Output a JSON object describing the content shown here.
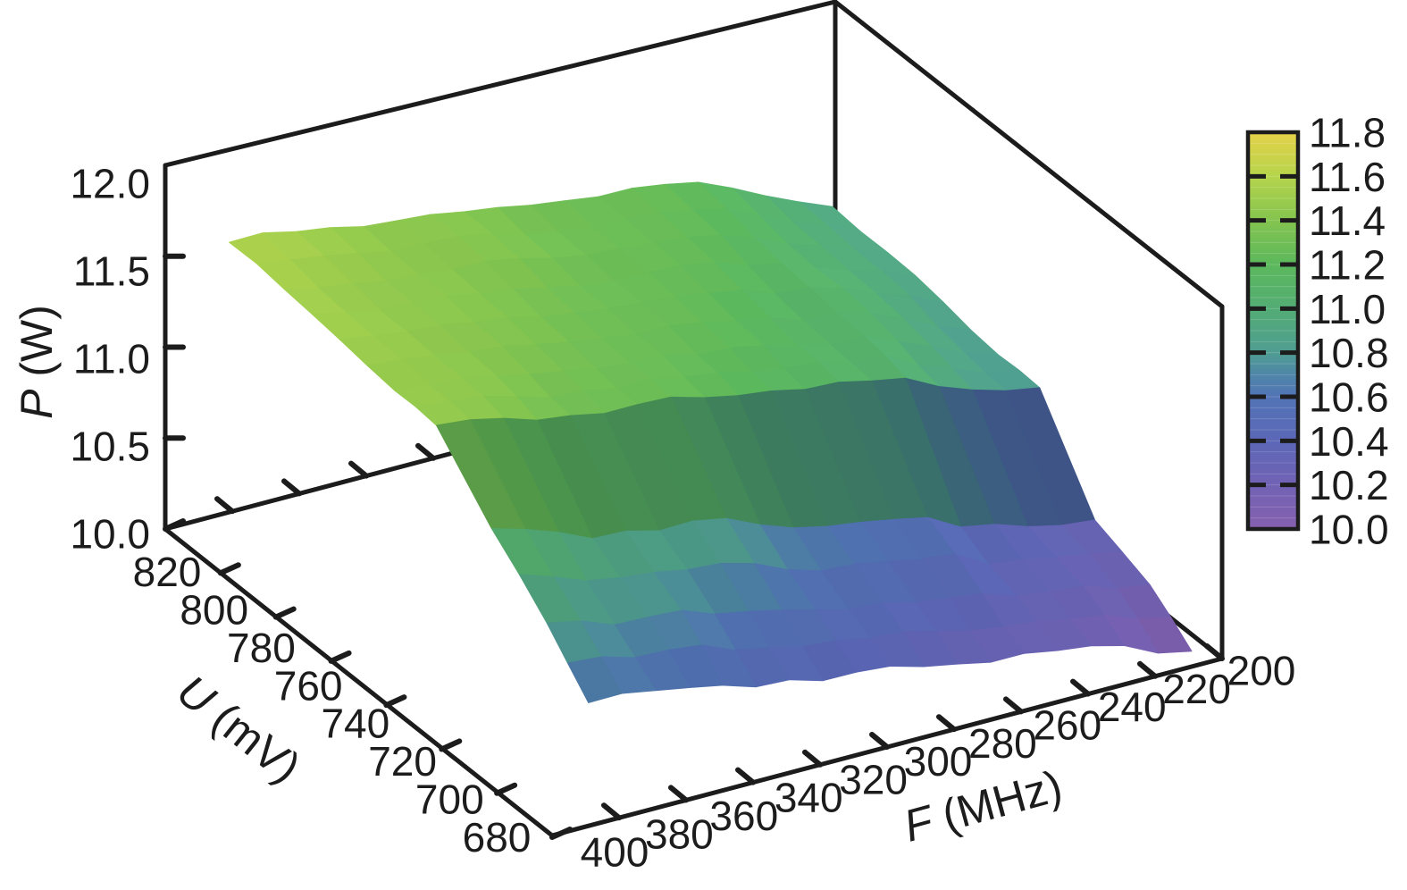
{
  "figure": {
    "background": "#ffffff",
    "ink_color": "#1c1c1c"
  },
  "chart_data": {
    "type": "surface3d",
    "title": "",
    "xlabel": "F (MHz)",
    "ylabel": "U (mV)",
    "zlabel": "P (W)",
    "axes": {
      "z": {
        "var": "P",
        "unit": " (W)",
        "range": [
          10.0,
          12.0
        ],
        "tick_labels": [
          "12.0",
          "11.5",
          "11.0",
          "10.5",
          "10.0"
        ],
        "tick_values": [
          12.0,
          11.5,
          11.0,
          10.5,
          10.0
        ],
        "inner_tick_values": [
          11.5,
          11.0,
          10.5
        ]
      },
      "u": {
        "var": "U",
        "unit": " (mV)",
        "range": [
          680,
          820
        ],
        "tick_labels": [
          "820",
          "800",
          "780",
          "760",
          "740",
          "720",
          "700",
          "680"
        ],
        "tick_values": [
          820,
          800,
          780,
          760,
          740,
          720,
          700,
          680
        ]
      },
      "f": {
        "var": "F",
        "unit": " (MHz)",
        "range": [
          200,
          400
        ],
        "tick_labels": [
          "400",
          "380",
          "360",
          "340",
          "320",
          "300",
          "280",
          "260",
          "240",
          "220",
          "200"
        ],
        "tick_values": [
          400,
          380,
          360,
          340,
          320,
          300,
          280,
          260,
          240,
          220,
          200
        ]
      }
    },
    "colorbar": {
      "min": 10.0,
      "max": 11.8,
      "tick_labels": [
        "11.8",
        "11.6",
        "11.4",
        "11.2",
        "11.0",
        "10.8",
        "10.6",
        "10.4",
        "10.2",
        "10.0"
      ],
      "tick_values": [
        11.8,
        11.6,
        11.4,
        11.2,
        11.0,
        10.8,
        10.6,
        10.4,
        10.2,
        10.0
      ],
      "inner_tick_values": [
        11.6,
        11.4,
        11.2,
        11.0,
        10.8,
        10.6,
        10.4,
        10.2
      ]
    },
    "colormap_stops": [
      {
        "v": 10.0,
        "c": "#8660af"
      },
      {
        "v": 10.2,
        "c": "#7162b4"
      },
      {
        "v": 10.4,
        "c": "#5c67b7"
      },
      {
        "v": 10.6,
        "c": "#5274b6"
      },
      {
        "v": 10.7,
        "c": "#4f86a8"
      },
      {
        "v": 10.8,
        "c": "#4f9d92"
      },
      {
        "v": 11.0,
        "c": "#53ac74"
      },
      {
        "v": 11.2,
        "c": "#5cb85c"
      },
      {
        "v": 11.4,
        "c": "#84c44f"
      },
      {
        "v": 11.6,
        "c": "#b5d44b"
      },
      {
        "v": 11.8,
        "c": "#e6d24a"
      }
    ],
    "surface": {
      "u_values": [
        815,
        795,
        775,
        755,
        740,
        720,
        700,
        685
      ],
      "f_values": [
        385,
        365,
        345,
        325,
        305,
        285,
        265,
        245,
        225,
        205
      ],
      "z_grid": [
        [
          11.57,
          11.52,
          11.47,
          11.42,
          11.36,
          11.32,
          11.28,
          11.2,
          11.05,
          10.88
        ],
        [
          11.54,
          11.49,
          11.44,
          11.39,
          11.33,
          11.29,
          11.24,
          11.16,
          11.01,
          10.86
        ],
        [
          11.51,
          11.46,
          11.41,
          11.35,
          11.3,
          11.25,
          11.2,
          11.12,
          10.98,
          10.84
        ],
        [
          11.48,
          11.43,
          11.37,
          11.32,
          11.26,
          11.21,
          11.15,
          11.07,
          10.94,
          10.81
        ],
        [
          11.45,
          11.4,
          11.34,
          11.28,
          11.22,
          11.17,
          11.11,
          11.03,
          10.9,
          10.78
        ],
        [
          11.12,
          11.02,
          10.94,
          10.86,
          10.77,
          10.68,
          10.58,
          10.48,
          10.39,
          10.3
        ],
        [
          10.86,
          10.77,
          10.71,
          10.64,
          10.56,
          10.48,
          10.42,
          10.34,
          10.26,
          10.19
        ],
        [
          10.63,
          10.56,
          10.51,
          10.45,
          10.38,
          10.32,
          10.27,
          10.2,
          10.13,
          10.04
        ]
      ],
      "step_between_u_rows": [
        740,
        720
      ]
    }
  }
}
